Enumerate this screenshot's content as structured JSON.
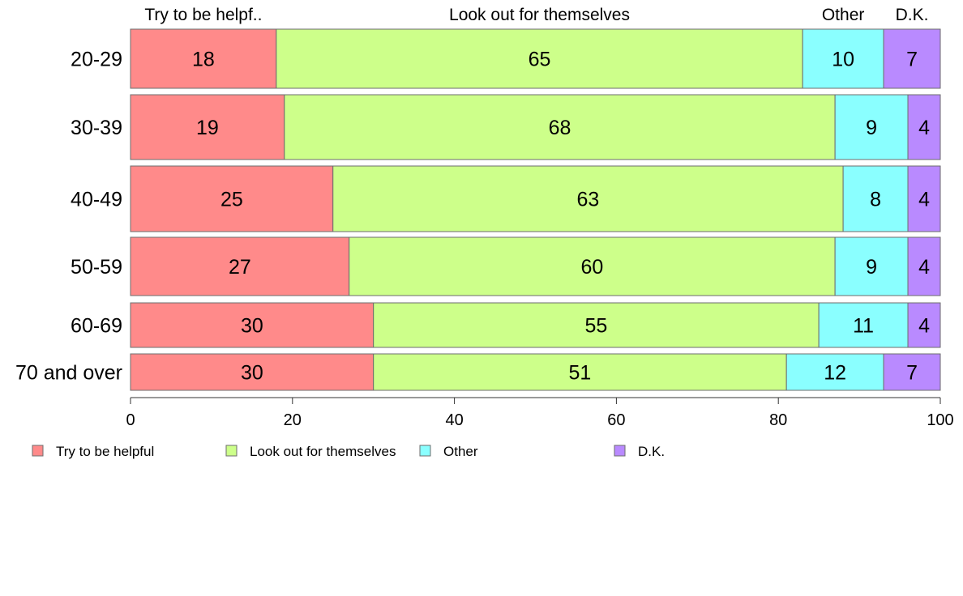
{
  "chart_data": {
    "type": "bar",
    "orientation": "horizontal",
    "stacked": true,
    "categories": [
      "20-29",
      "30-39",
      "40-49",
      "50-59",
      "60-69",
      "70 and over"
    ],
    "series": [
      {
        "name": "Try to be helpful",
        "color": "#ff8a8a",
        "values": [
          18,
          19,
          25,
          27,
          30,
          30
        ]
      },
      {
        "name": "Look out for themselves",
        "color": "#cdff8a",
        "values": [
          65,
          68,
          63,
          60,
          55,
          51
        ]
      },
      {
        "name": "Other",
        "color": "#8affff",
        "values": [
          10,
          9,
          8,
          9,
          11,
          12
        ]
      },
      {
        "name": "D.K.",
        "color": "#b98aff",
        "values": [
          7,
          4,
          4,
          4,
          4,
          7
        ]
      }
    ],
    "top_labels": [
      "Try to be helpf..",
      "Look out for themselves",
      "Other",
      "D.K."
    ],
    "xlim": [
      0,
      100
    ],
    "xticks": [
      0,
      20,
      40,
      60,
      80,
      100
    ],
    "grid": false,
    "legend_position": "bottom-left"
  }
}
